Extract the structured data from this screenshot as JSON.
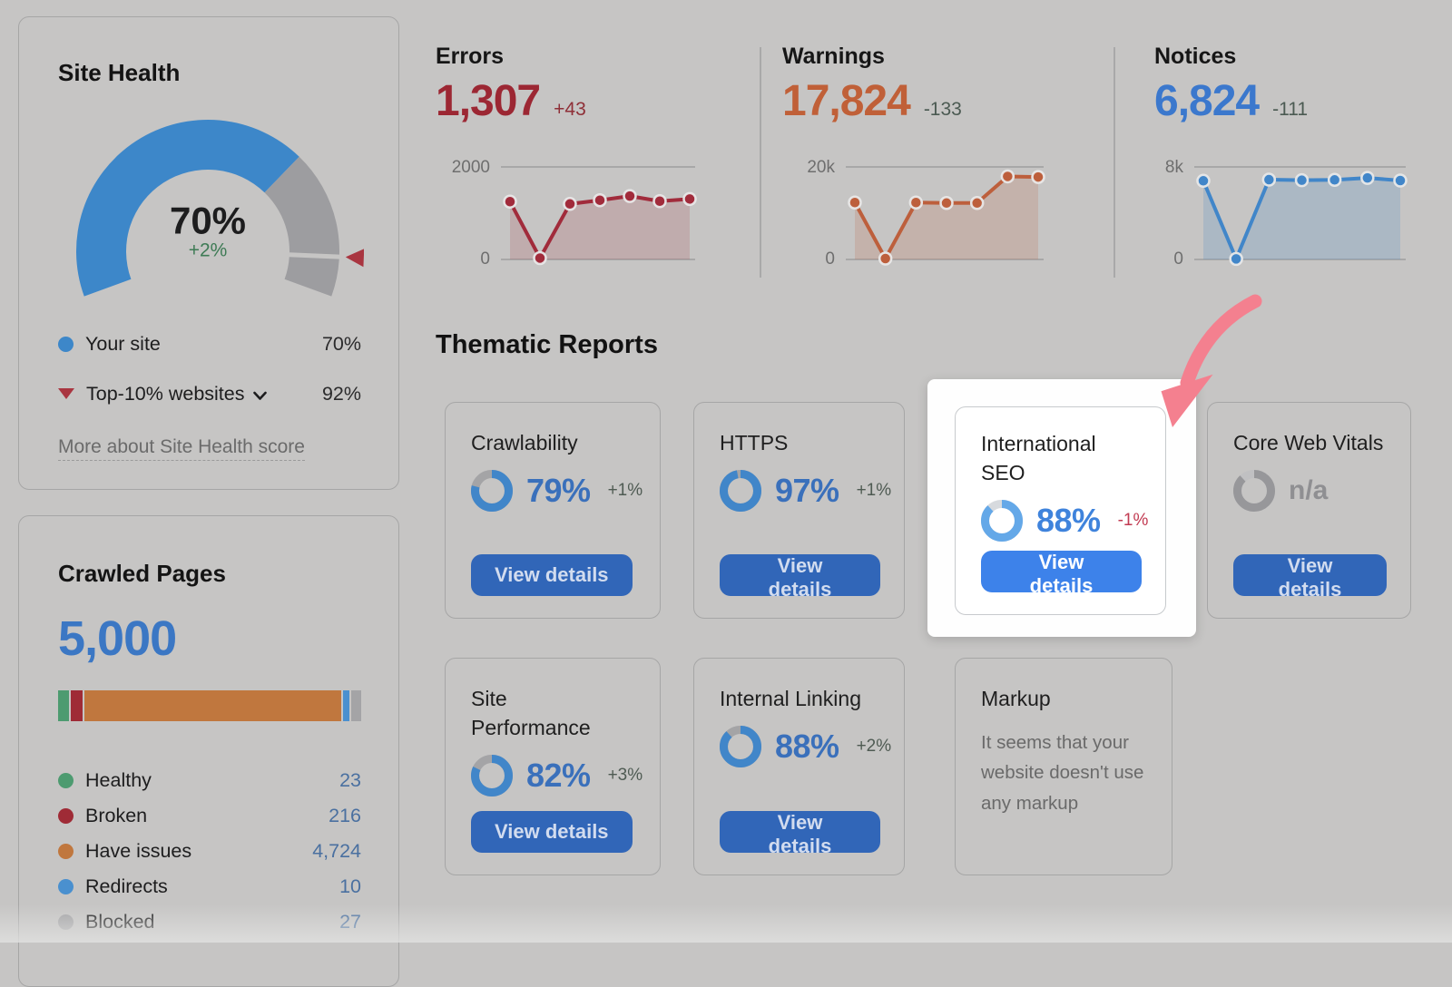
{
  "site_health": {
    "title": "Site Health",
    "gauge": {
      "value": 70,
      "display": "70%",
      "change": "+2%",
      "change_color": "#3e7b55",
      "benchmark": 92,
      "arc_color": "#3d87c9",
      "rest_color": "#9d9da0",
      "marker_color": "#a93540"
    },
    "rows": [
      {
        "label": "Your site",
        "value": "70%",
        "marker": "blue-dot"
      },
      {
        "label": "Top-10% websites",
        "value": "92%",
        "marker": "red-triangle",
        "dropdown": true
      }
    ],
    "link": "More about Site Health score"
  },
  "crawled_pages": {
    "title": "Crawled Pages",
    "total": "5,000",
    "segments": [
      {
        "label": "Healthy",
        "value": "23",
        "count": 23,
        "color": "#4d9b70"
      },
      {
        "label": "Broken",
        "value": "216",
        "count": 216,
        "color": "#9f2b36"
      },
      {
        "label": "Have issues",
        "value": "4,724",
        "count": 4724,
        "color": "#c0773e"
      },
      {
        "label": "Redirects",
        "value": "10",
        "count": 10,
        "color": "#4a90cf"
      },
      {
        "label": "Blocked",
        "value": "27",
        "count": 27,
        "color": "#a4a4a6"
      }
    ]
  },
  "kpis": [
    {
      "id": "errors",
      "label": "Errors",
      "value": "1,307",
      "delta": "+43",
      "value_color": "#9c2733",
      "delta_color": "#8f3038",
      "line_color": "#a12b3b",
      "fill_color": "rgba(161,43,59,0.16)",
      "chart_data": {
        "type": "area",
        "axis_max_label": "2000",
        "axis_min_label": "0",
        "ylim": [
          0,
          2000
        ],
        "values": [
          1250,
          30,
          1200,
          1280,
          1370,
          1260,
          1307
        ]
      }
    },
    {
      "id": "warnings",
      "label": "Warnings",
      "value": "17,824",
      "delta": "-133",
      "value_color": "#c06038",
      "delta_color": "#4b5a52",
      "line_color": "#bd5f3c",
      "fill_color": "rgba(189,95,60,0.18)",
      "chart_data": {
        "type": "area",
        "axis_max_label": "20k",
        "axis_min_label": "0",
        "ylim": [
          0,
          20000
        ],
        "values": [
          12300,
          200,
          12300,
          12200,
          12200,
          17950,
          17824
        ]
      }
    },
    {
      "id": "notices",
      "label": "Notices",
      "value": "6,824",
      "delta": "-111",
      "value_color": "#3b78cd",
      "delta_color": "#4b5a52",
      "line_color": "#4186c9",
      "fill_color": "rgba(65,134,201,0.20)",
      "chart_data": {
        "type": "area",
        "axis_max_label": "8k",
        "axis_min_label": "0",
        "ylim": [
          0,
          8000
        ],
        "values": [
          6800,
          50,
          6900,
          6850,
          6880,
          7050,
          6824
        ]
      }
    }
  ],
  "thematic": {
    "title": "Thematic Reports",
    "button_label": "View details",
    "cards": [
      {
        "id": "crawlability",
        "title": "Crawlability",
        "value": "79%",
        "pct": 79,
        "delta": "+1%",
        "delta_color": "#4f5b53"
      },
      {
        "id": "https",
        "title": "HTTPS",
        "value": "97%",
        "pct": 97,
        "delta": "+1%",
        "delta_color": "#4f5b53"
      },
      {
        "id": "international-seo",
        "title": "International\nSEO",
        "value": "88%",
        "pct": 88,
        "delta": "-1%",
        "delta_color": "#c23b52",
        "highlight": true
      },
      {
        "id": "core-web-vitals",
        "title": "Core Web Vitals",
        "value": "n/a",
        "na": true
      },
      {
        "id": "site-performance",
        "title": "Site\nPerformance",
        "value": "82%",
        "pct": 82,
        "delta": "+3%",
        "delta_color": "#4f5b53"
      },
      {
        "id": "internal-linking",
        "title": "Internal Linking",
        "value": "88%",
        "pct": 88,
        "delta": "+2%",
        "delta_color": "#4f5b53"
      },
      {
        "id": "markup",
        "title": "Markup",
        "text": "It seems that your website doesn't use any markup",
        "text_only": true
      }
    ]
  },
  "annotation": {
    "arrow_color": "#f4808f"
  }
}
